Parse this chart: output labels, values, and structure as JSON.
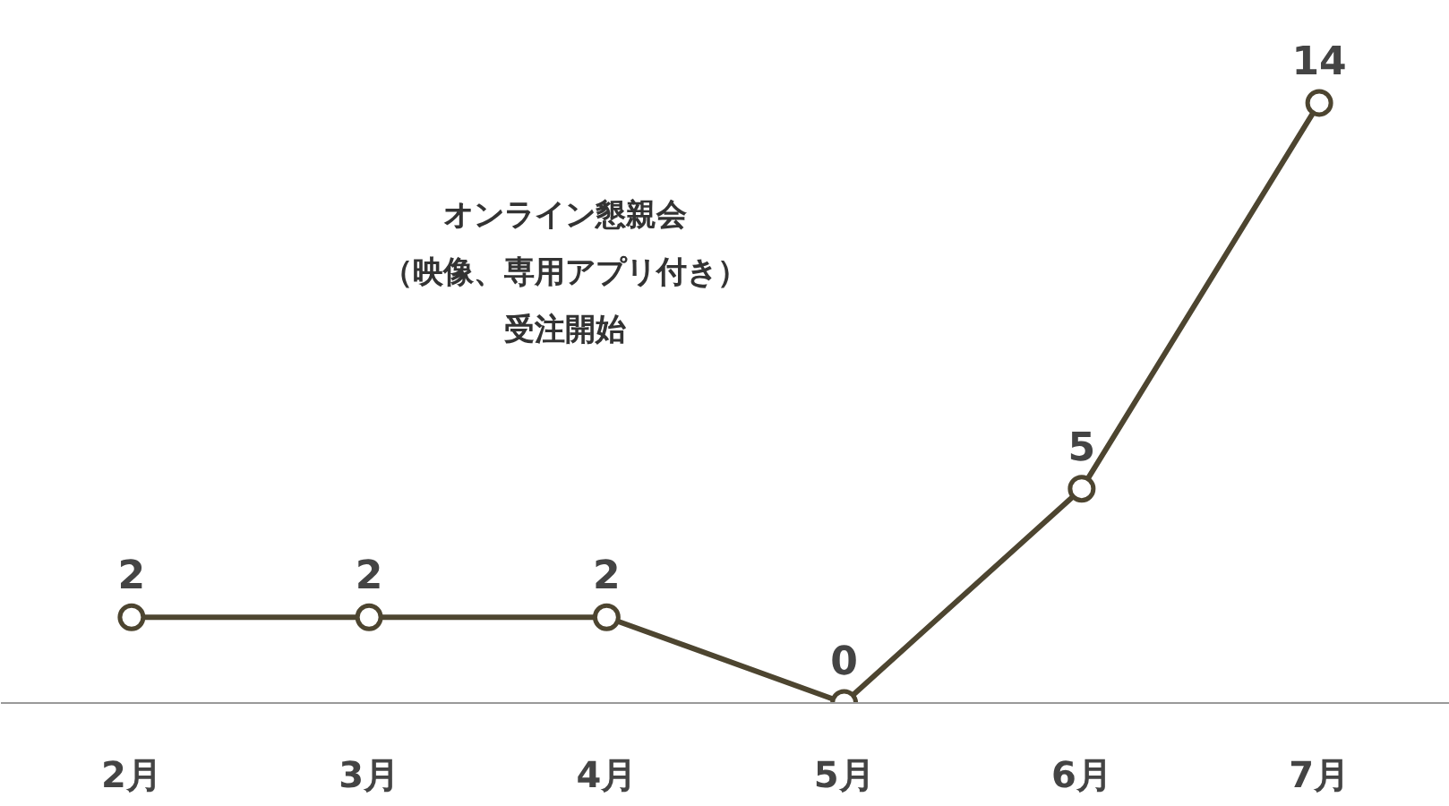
{
  "chart_data": {
    "type": "line",
    "categories": [
      "2月",
      "3月",
      "4月",
      "5月",
      "6月",
      "7月"
    ],
    "series": [
      {
        "color": "#4d4530",
        "values": [
          2,
          2,
          2,
          0,
          5,
          14
        ]
      }
    ],
    "data_labels": true,
    "marker": "circle",
    "line_style": "solid",
    "grid": false,
    "tick_labels": "x",
    "annotations": [
      "オンライン懇親会",
      "（映像、専用アプリ付き）",
      "受注開始"
    ]
  }
}
